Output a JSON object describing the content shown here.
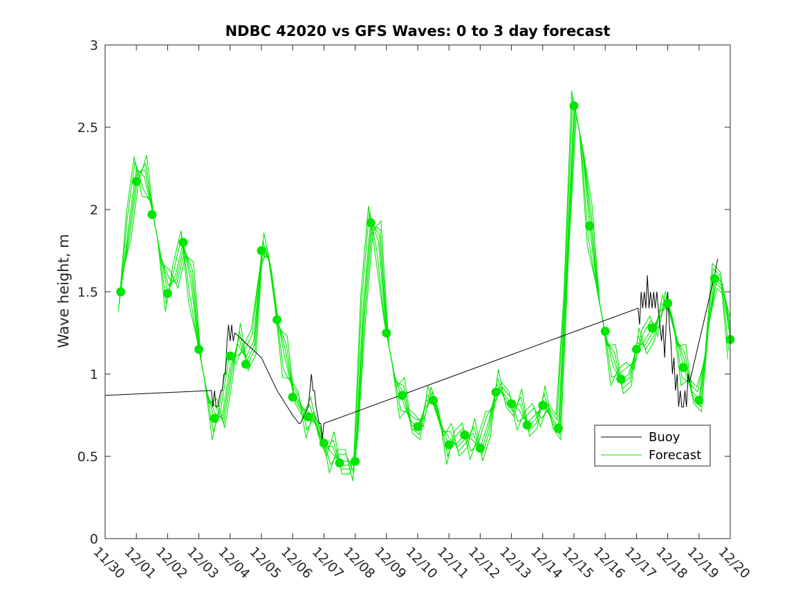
{
  "chart_data": {
    "type": "line",
    "title": "NDBC 42020 vs GFS Waves: 0 to 3 day forecast",
    "xlabel": "",
    "ylabel": "Wave height, m",
    "xlim": [
      0,
      20
    ],
    "ylim": [
      0,
      3
    ],
    "yticks": [
      0,
      0.5,
      1,
      1.5,
      2,
      2.5,
      3
    ],
    "ytick_labels": [
      "0",
      "0.5",
      "1",
      "1.5",
      "2",
      "2.5",
      "3"
    ],
    "xtick_labels": [
      "11/30",
      "12/01",
      "12/02",
      "12/03",
      "12/04",
      "12/05",
      "12/06",
      "12/07",
      "12/08",
      "12/09",
      "12/10",
      "12/11",
      "12/12",
      "12/13",
      "12/14",
      "12/15",
      "12/16",
      "12/17",
      "12/18",
      "12/19",
      "12/20"
    ],
    "grid": false,
    "legend": {
      "location": "lower-right",
      "entries": [
        {
          "label": "Buoy",
          "color": "#000000"
        },
        {
          "label": "Forecast",
          "color": "#00e600"
        }
      ]
    },
    "series": [
      {
        "name": "Buoy",
        "color": "#000000",
        "x": [
          0,
          3.4,
          3.45,
          3.5,
          3.55,
          3.6,
          3.65,
          3.7,
          3.75,
          3.8,
          3.85,
          3.9,
          3.95,
          4.0,
          4.05,
          4.1,
          4.15,
          5.0,
          5.5,
          6.0,
          6.2,
          6.25,
          6.5,
          6.55,
          6.6,
          6.65,
          6.7,
          6.75,
          6.8,
          6.85,
          6.9,
          6.95,
          7.0,
          17.05,
          17.1,
          17.15,
          17.2,
          17.25,
          17.3,
          17.35,
          17.4,
          17.45,
          17.5,
          17.55,
          17.6,
          17.65,
          17.7,
          17.75,
          17.8,
          17.85,
          17.9,
          17.95,
          18.0,
          18.05,
          18.1,
          18.15,
          18.2,
          18.25,
          18.3,
          18.35,
          18.4,
          18.45,
          18.5,
          18.55,
          18.6,
          18.65,
          18.7,
          19.5,
          19.6
        ],
        "y": [
          0.87,
          0.9,
          0.8,
          0.9,
          0.8,
          0.8,
          0.85,
          0.9,
          0.9,
          1.0,
          1.0,
          1.2,
          1.3,
          1.2,
          1.3,
          1.2,
          1.25,
          1.1,
          0.9,
          0.75,
          0.7,
          0.7,
          0.8,
          0.9,
          1.0,
          0.9,
          0.9,
          0.8,
          0.75,
          0.7,
          0.7,
          0.6,
          0.7,
          1.4,
          1.3,
          1.5,
          1.4,
          1.5,
          1.4,
          1.6,
          1.4,
          1.5,
          1.4,
          1.5,
          1.4,
          1.5,
          1.4,
          1.3,
          1.2,
          1.3,
          1.1,
          1.3,
          1.5,
          1.3,
          1.2,
          1.0,
          1.1,
          0.9,
          1.0,
          0.8,
          0.9,
          0.8,
          0.8,
          0.9,
          0.8,
          1.0,
          0.95,
          1.6,
          1.7
        ]
      },
      {
        "name": "Forecast",
        "color": "#00e600",
        "x": [
          0.5,
          0.75,
          1.0,
          1.25,
          1.5,
          1.75,
          2.0,
          2.25,
          2.5,
          2.75,
          3.0,
          3.25,
          3.5,
          3.75,
          4.0,
          4.25,
          4.5,
          4.75,
          5.0,
          5.25,
          5.5,
          5.75,
          6.0,
          6.25,
          6.5,
          6.75,
          7.0,
          7.25,
          7.5,
          7.75,
          8.0,
          8.25,
          8.5,
          8.75,
          9.0,
          9.25,
          9.5,
          9.75,
          10.0,
          10.25,
          10.5,
          10.75,
          11.0,
          11.25,
          11.5,
          11.75,
          12.0,
          12.25,
          12.5,
          12.75,
          13.0,
          13.25,
          13.5,
          13.75,
          14.0,
          14.25,
          14.5,
          14.75,
          15.0,
          15.25,
          15.5,
          15.75,
          16.0,
          16.25,
          16.5,
          16.75,
          17.0,
          17.25,
          17.5,
          17.75,
          18.0,
          18.25,
          18.5,
          18.75,
          19.0,
          19.25,
          19.5,
          19.75,
          20.0
        ],
        "y": [
          1.5,
          1.9,
          2.25,
          2.2,
          2.0,
          1.75,
          1.5,
          1.6,
          1.8,
          1.55,
          1.15,
          0.9,
          0.72,
          0.75,
          1.05,
          1.18,
          1.1,
          1.2,
          1.73,
          1.7,
          1.35,
          1.1,
          0.9,
          0.82,
          0.73,
          0.7,
          0.58,
          0.52,
          0.47,
          0.47,
          0.47,
          1.4,
          1.95,
          1.8,
          1.25,
          1.0,
          0.85,
          0.72,
          0.68,
          0.8,
          0.85,
          0.7,
          0.57,
          0.58,
          0.63,
          0.6,
          0.55,
          0.7,
          0.9,
          0.88,
          0.82,
          0.78,
          0.7,
          0.75,
          0.8,
          0.75,
          0.68,
          1.6,
          2.65,
          2.4,
          1.9,
          1.5,
          1.25,
          1.05,
          0.96,
          1.0,
          1.15,
          1.2,
          1.28,
          1.35,
          1.43,
          1.25,
          1.05,
          0.9,
          0.85,
          1.2,
          1.6,
          1.55,
          1.21
        ]
      }
    ],
    "markers": {
      "name": "Forecast analysis points",
      "color": "#00e600",
      "x": [
        0.5,
        1.0,
        1.5,
        2.0,
        2.5,
        3.0,
        3.5,
        4.0,
        4.5,
        5.0,
        5.5,
        6.0,
        6.5,
        7.0,
        7.5,
        8.0,
        8.5,
        9.0,
        9.5,
        10.0,
        10.5,
        11.0,
        11.5,
        12.0,
        12.5,
        13.0,
        13.5,
        14.0,
        14.5,
        15.0,
        15.5,
        16.0,
        16.5,
        17.0,
        17.5,
        18.0,
        18.5,
        19.0,
        19.5,
        20.0
      ],
      "y": [
        1.5,
        2.17,
        1.97,
        1.49,
        1.8,
        1.15,
        0.73,
        1.11,
        1.06,
        1.75,
        1.33,
        0.86,
        0.74,
        0.58,
        0.46,
        0.47,
        1.92,
        1.25,
        0.87,
        0.68,
        0.84,
        0.57,
        0.63,
        0.55,
        0.89,
        0.82,
        0.69,
        0.81,
        0.67,
        2.63,
        1.9,
        1.26,
        0.97,
        1.15,
        1.28,
        1.43,
        1.04,
        0.84,
        1.58,
        1.21
      ]
    }
  }
}
